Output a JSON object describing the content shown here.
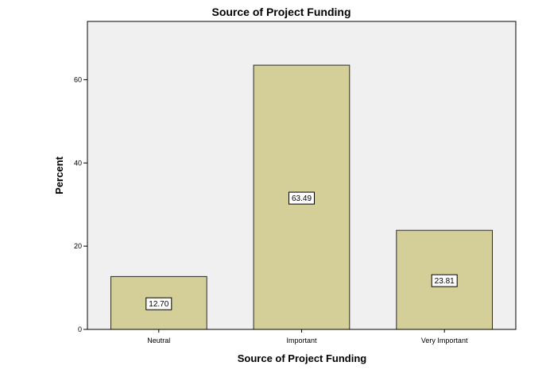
{
  "chart_data": {
    "type": "bar",
    "title": "Source of Project Funding",
    "xlabel": "Source of Project Funding",
    "ylabel": "Percent",
    "categories": [
      "Neutral",
      "Important",
      "Very Important"
    ],
    "values": [
      12.7,
      63.49,
      23.81
    ],
    "data_labels": [
      "12.70",
      "63.49",
      "23.81"
    ],
    "ylim": [
      0,
      74
    ],
    "yticks": [
      0,
      20,
      40,
      60
    ],
    "ytick_labels": [
      "0",
      "20",
      "40",
      "60"
    ],
    "grid": false,
    "legend": "none",
    "colors": {
      "bar_fill": "#d4cf98",
      "bar_stroke": "#2b2b2b",
      "plot_background": "#f0f0f0",
      "plot_border": "#000000"
    }
  }
}
